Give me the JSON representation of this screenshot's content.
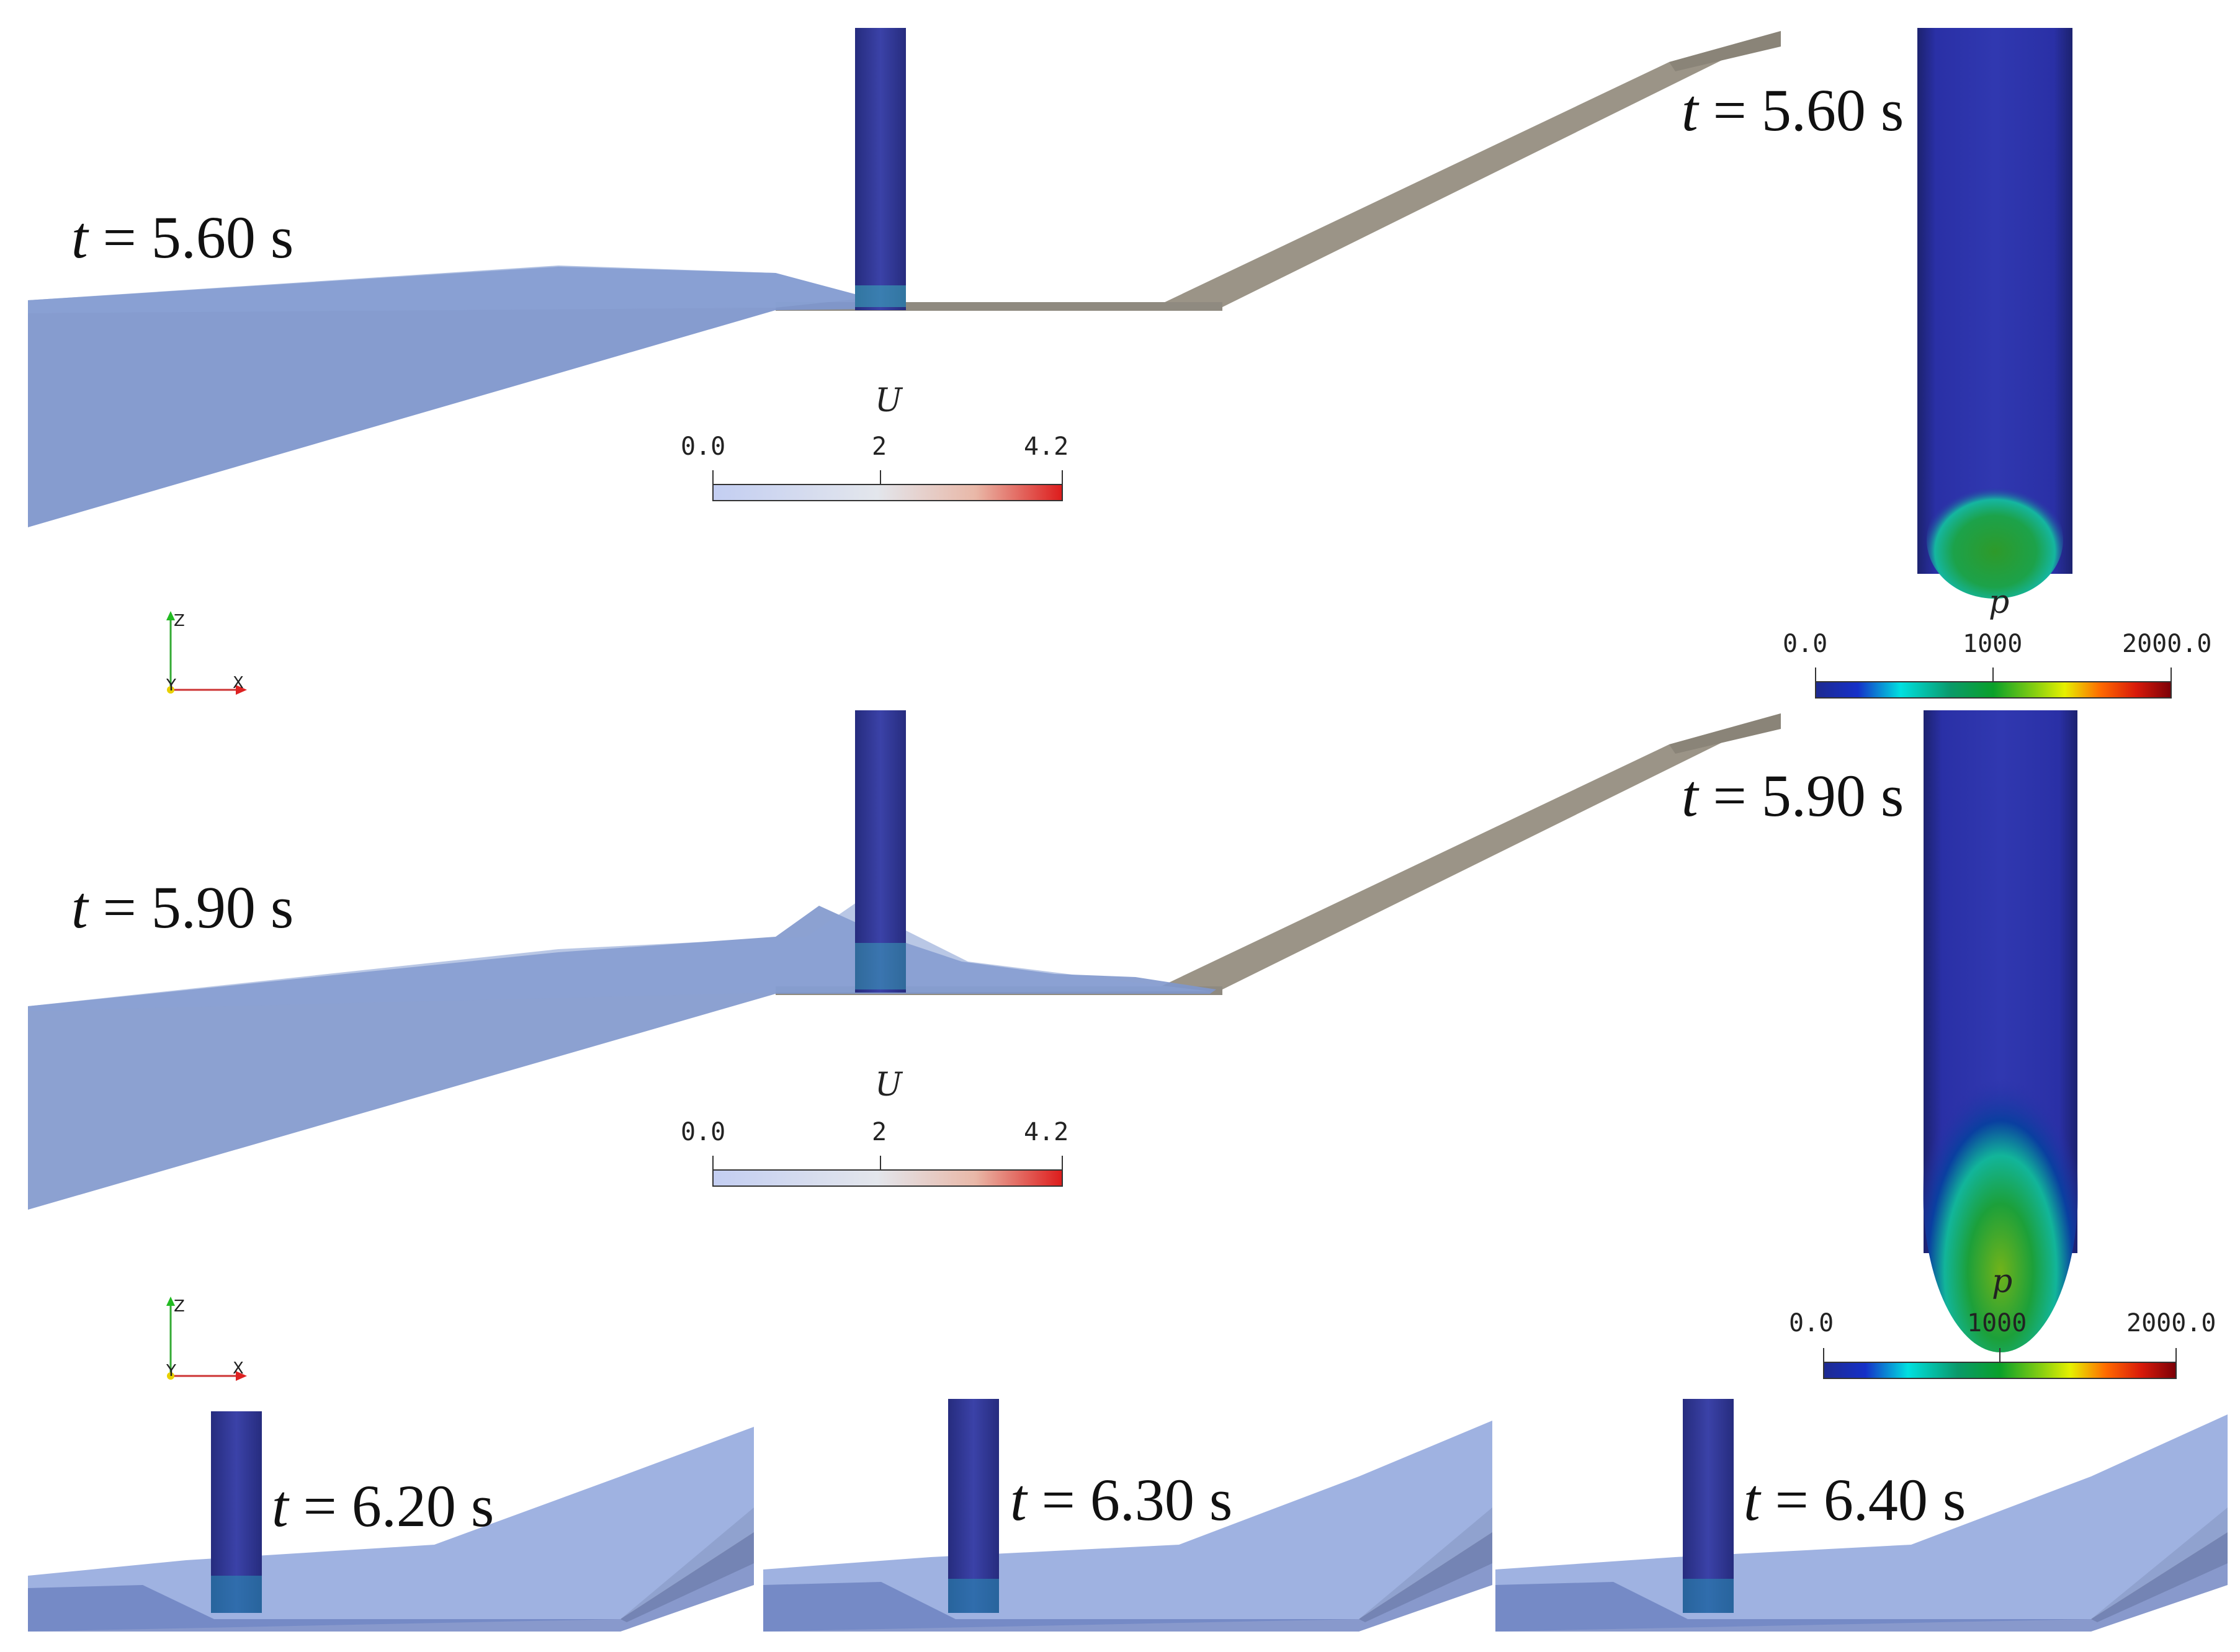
{
  "panels": [
    {
      "id": "panel-1",
      "time_var": "t",
      "time_text": " = 5.60 s"
    },
    {
      "id": "panel-2",
      "time_var": "t",
      "time_text": " = 5.90 s"
    },
    {
      "id": "panel-3",
      "time_var": "t",
      "time_text": " = 6.20 s"
    },
    {
      "id": "panel-4",
      "time_var": "t",
      "time_text": " = 6.30 s"
    },
    {
      "id": "panel-5",
      "time_var": "t",
      "time_text": " = 6.40 s"
    }
  ],
  "pressure_views": [
    {
      "time_var": "t",
      "time_text": " = 5.60 s"
    },
    {
      "time_var": "t",
      "time_text": " = 5.90 s"
    }
  ],
  "velocity_colorbar": {
    "title": "U",
    "ticks": [
      "0.0",
      "2",
      "4.2"
    ],
    "colors": [
      "#c3cef2",
      "#e3e6ec",
      "#dd1b1b"
    ]
  },
  "pressure_colorbar": {
    "title": "p",
    "ticks": [
      "0.0",
      "1000",
      "2000.0"
    ],
    "colors": [
      "#1e2a90",
      "#00e0e0",
      "#0aa02a",
      "#e6f000",
      "#ff6a00",
      "#7a0008"
    ]
  },
  "axes_triad": {
    "z": "Z",
    "y": "Y",
    "x": "X"
  },
  "colors": {
    "water": "#7f97cc",
    "pile": "#31378f",
    "beach": "#9b9487",
    "pressure_bg": "#2a2f9e"
  }
}
